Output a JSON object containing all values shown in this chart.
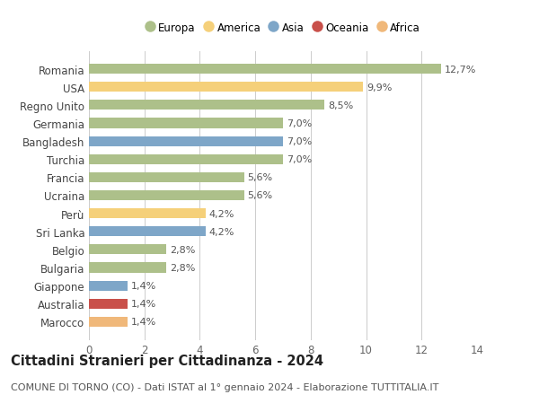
{
  "countries": [
    "Romania",
    "USA",
    "Regno Unito",
    "Germania",
    "Bangladesh",
    "Turchia",
    "Francia",
    "Ucraina",
    "Perù",
    "Sri Lanka",
    "Belgio",
    "Bulgaria",
    "Giappone",
    "Australia",
    "Marocco"
  ],
  "values": [
    12.7,
    9.9,
    8.5,
    7.0,
    7.0,
    7.0,
    5.6,
    5.6,
    4.2,
    4.2,
    2.8,
    2.8,
    1.4,
    1.4,
    1.4
  ],
  "labels": [
    "12,7%",
    "9,9%",
    "8,5%",
    "7,0%",
    "7,0%",
    "7,0%",
    "5,6%",
    "5,6%",
    "4,2%",
    "4,2%",
    "2,8%",
    "2,8%",
    "1,4%",
    "1,4%",
    "1,4%"
  ],
  "continents": [
    "Europa",
    "America",
    "Europa",
    "Europa",
    "Asia",
    "Europa",
    "Europa",
    "Europa",
    "America",
    "Asia",
    "Europa",
    "Europa",
    "Asia",
    "Oceania",
    "Africa"
  ],
  "continent_colors": {
    "Europa": "#adc08a",
    "America": "#f5d07a",
    "Asia": "#7ea6c8",
    "Oceania": "#c9504a",
    "Africa": "#f0b87a"
  },
  "legend_items": [
    "Europa",
    "America",
    "Asia",
    "Oceania",
    "Africa"
  ],
  "xlim": [
    0,
    14
  ],
  "xticks": [
    0,
    2,
    4,
    6,
    8,
    10,
    12,
    14
  ],
  "title": "Cittadini Stranieri per Cittadinanza - 2024",
  "subtitle": "COMUNE DI TORNO (CO) - Dati ISTAT al 1° gennaio 2024 - Elaborazione TUTTITALIA.IT",
  "bg_color": "#ffffff",
  "grid_color": "#cccccc",
  "bar_height": 0.55,
  "label_fontsize": 8.0,
  "tick_fontsize": 8.5,
  "ytick_fontsize": 8.5,
  "title_fontsize": 10.5,
  "subtitle_fontsize": 8.0
}
